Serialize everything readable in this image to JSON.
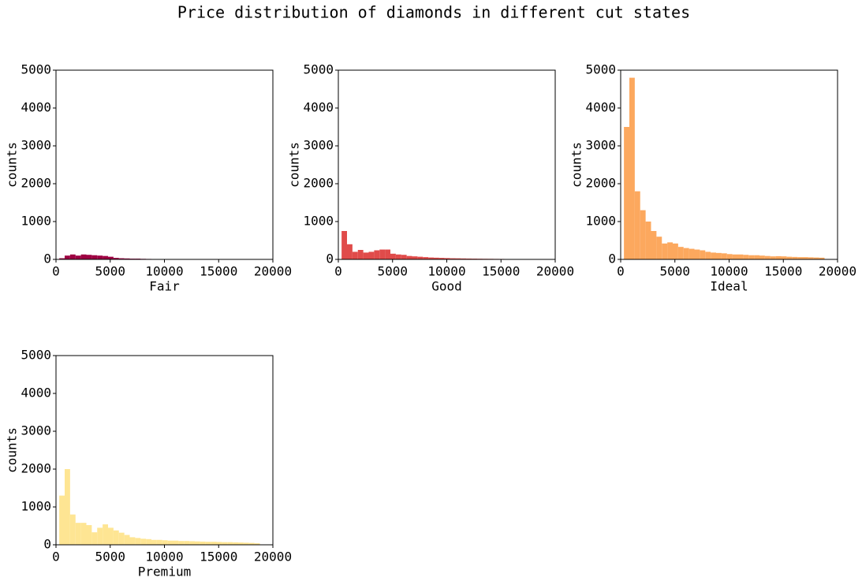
{
  "title": "Price distribution of diamonds in different cut states",
  "chart_data": [
    {
      "type": "histogram",
      "xlabel": "Fair",
      "ylabel": "counts",
      "color": "#9e0142",
      "bins": [
        300,
        800,
        1300,
        1800,
        2300,
        2800,
        3300,
        3800,
        4300,
        4800,
        5300,
        5800,
        6300,
        6800,
        7300,
        7800,
        8300,
        8800,
        9300,
        9800,
        10300,
        10800,
        11300,
        11800,
        12300,
        12800,
        13300,
        13800,
        14300,
        14800,
        15300,
        15800,
        16300,
        16800,
        17300,
        17800,
        18300,
        18800
      ],
      "values": [
        30,
        100,
        130,
        100,
        130,
        120,
        110,
        100,
        90,
        70,
        40,
        30,
        25,
        20,
        20,
        15,
        12,
        10,
        10,
        8,
        8,
        6,
        6,
        5,
        5,
        4,
        4,
        3,
        3,
        3,
        2,
        2,
        2,
        2,
        1,
        1,
        1
      ],
      "xlim": [
        0,
        20000
      ],
      "xticks": [
        0,
        5000,
        10000,
        15000,
        20000
      ],
      "ylim": [
        0,
        5000
      ],
      "yticks": [
        0,
        1000,
        2000,
        3000,
        4000,
        5000
      ]
    },
    {
      "type": "histogram",
      "xlabel": "Good",
      "ylabel": "counts",
      "color": "#e04b4a",
      "bins": [
        300,
        800,
        1300,
        1800,
        2300,
        2800,
        3300,
        3800,
        4300,
        4800,
        5300,
        5800,
        6300,
        6800,
        7300,
        7800,
        8300,
        8800,
        9300,
        9800,
        10300,
        10800,
        11300,
        11800,
        12300,
        12800,
        13300,
        13800,
        14300,
        14800,
        15300,
        15800,
        16300,
        16800,
        17300,
        17800,
        18300,
        18800
      ],
      "values": [
        750,
        400,
        200,
        250,
        180,
        200,
        240,
        260,
        260,
        150,
        130,
        120,
        90,
        80,
        70,
        60,
        50,
        45,
        40,
        35,
        30,
        28,
        25,
        22,
        20,
        18,
        16,
        15,
        13,
        12,
        10,
        9,
        8,
        7,
        6,
        5,
        4
      ],
      "xlim": [
        0,
        20000
      ],
      "xticks": [
        0,
        5000,
        10000,
        15000,
        20000
      ],
      "ylim": [
        0,
        5000
      ],
      "yticks": [
        0,
        1000,
        2000,
        3000,
        4000,
        5000
      ]
    },
    {
      "type": "histogram",
      "xlabel": "Ideal",
      "ylabel": "counts",
      "color": "#fca85e",
      "bins": [
        300,
        800,
        1300,
        1800,
        2300,
        2800,
        3300,
        3800,
        4300,
        4800,
        5300,
        5800,
        6300,
        6800,
        7300,
        7800,
        8300,
        8800,
        9300,
        9800,
        10300,
        10800,
        11300,
        11800,
        12300,
        12800,
        13300,
        13800,
        14300,
        14800,
        15300,
        15800,
        16300,
        16800,
        17300,
        17800,
        18300,
        18800
      ],
      "values": [
        3500,
        4800,
        1800,
        1300,
        1000,
        750,
        600,
        420,
        450,
        420,
        330,
        300,
        280,
        260,
        240,
        200,
        180,
        170,
        160,
        140,
        130,
        130,
        120,
        110,
        110,
        100,
        90,
        80,
        85,
        80,
        70,
        65,
        60,
        60,
        55,
        50,
        45
      ],
      "xlim": [
        0,
        20000
      ],
      "xticks": [
        0,
        5000,
        10000,
        15000,
        20000
      ],
      "ylim": [
        0,
        5000
      ],
      "yticks": [
        0,
        1000,
        2000,
        3000,
        4000,
        5000
      ]
    },
    {
      "type": "histogram",
      "xlabel": "Premium",
      "ylabel": "counts",
      "color": "#fee593",
      "bins": [
        300,
        800,
        1300,
        1800,
        2300,
        2800,
        3300,
        3800,
        4300,
        4800,
        5300,
        5800,
        6300,
        6800,
        7300,
        7800,
        8300,
        8800,
        9300,
        9800,
        10300,
        10800,
        11300,
        11800,
        12300,
        12800,
        13300,
        13800,
        14300,
        14800,
        15300,
        15800,
        16300,
        16800,
        17300,
        17800,
        18300,
        18800
      ],
      "values": [
        1300,
        2000,
        800,
        580,
        580,
        520,
        330,
        450,
        540,
        450,
        380,
        320,
        260,
        200,
        180,
        160,
        150,
        130,
        130,
        120,
        110,
        110,
        100,
        100,
        95,
        90,
        85,
        80,
        80,
        75,
        70,
        70,
        65,
        60,
        55,
        50,
        40
      ],
      "xlim": [
        0,
        20000
      ],
      "xticks": [
        0,
        5000,
        10000,
        15000,
        20000
      ],
      "ylim": [
        0,
        5000
      ],
      "yticks": [
        0,
        1000,
        2000,
        3000,
        4000,
        5000
      ]
    }
  ]
}
